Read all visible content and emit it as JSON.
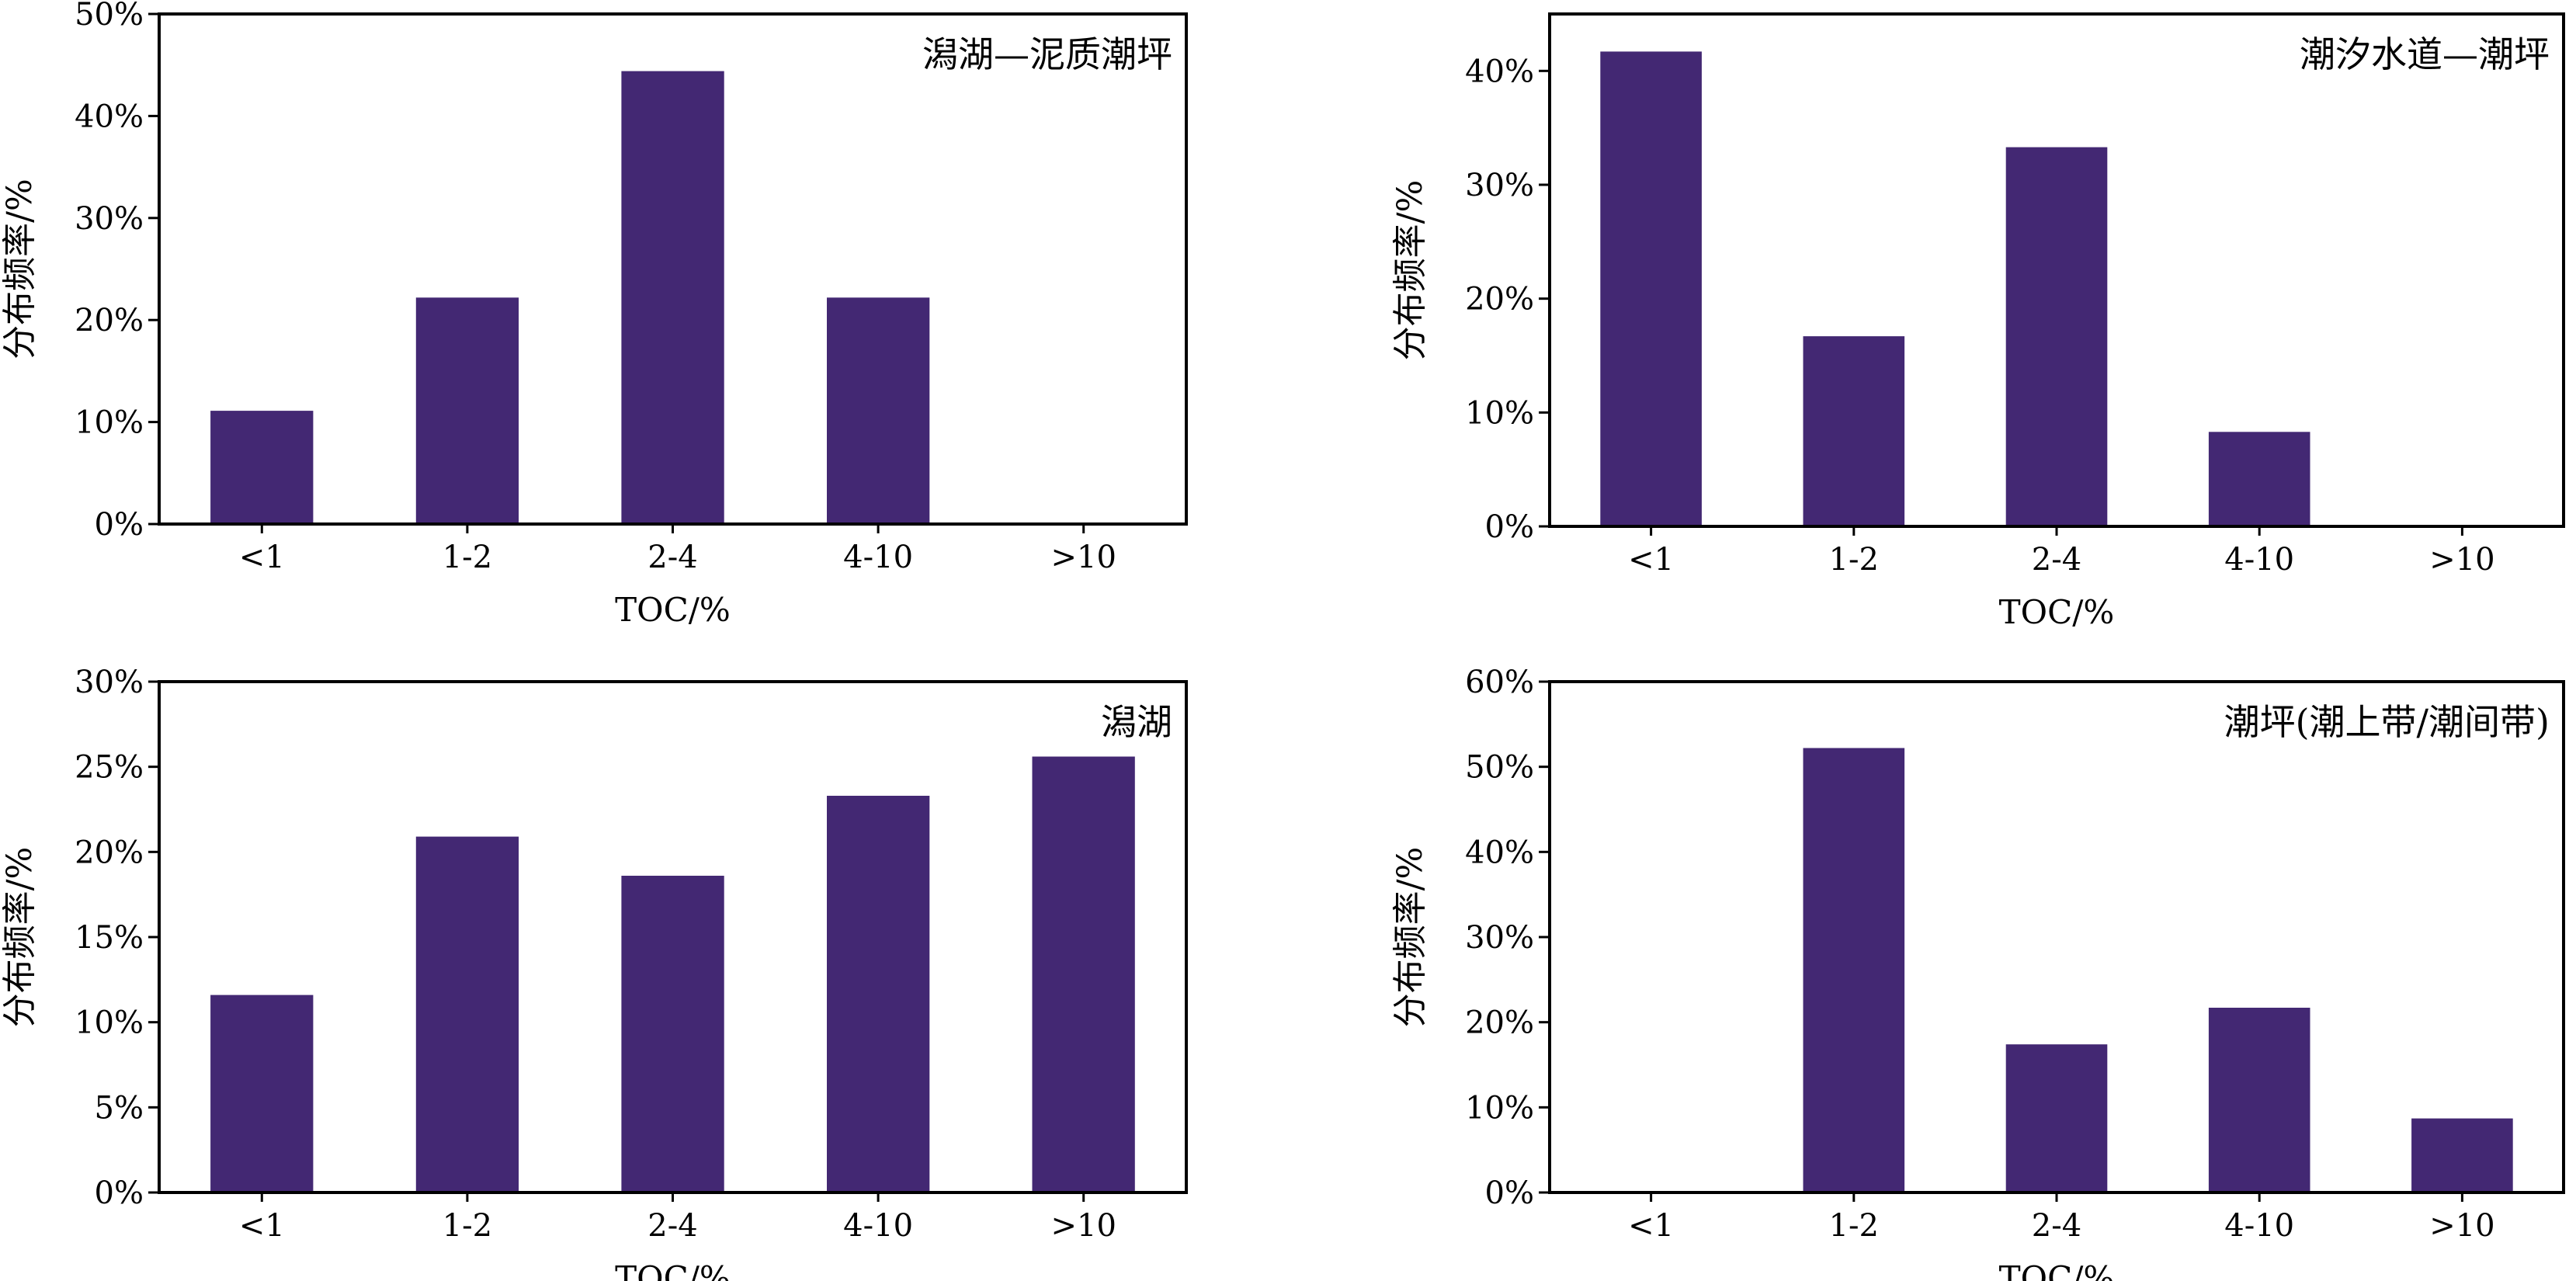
{
  "chart_data": [
    {
      "type": "bar",
      "title": "潟湖—泥质潮坪",
      "xlabel": "TOC/%",
      "ylabel": "分布频率/%",
      "categories": [
        "<1",
        "1-2",
        "2-4",
        "4-10",
        ">10"
      ],
      "values": [
        11.1,
        22.2,
        44.4,
        22.2,
        0
      ],
      "ylim": [
        0,
        50
      ],
      "yticks": [
        0,
        10,
        20,
        30,
        40,
        50
      ],
      "ytick_labels": [
        "0%",
        "10%",
        "20%",
        "30%",
        "40%",
        "50%"
      ],
      "bar_color": "#432873",
      "grid": false
    },
    {
      "type": "bar",
      "title": "潮汐水道—潮坪",
      "xlabel": "TOC/%",
      "ylabel": "分布频率/%",
      "categories": [
        "<1",
        "1-2",
        "2-4",
        "4-10",
        ">10"
      ],
      "values": [
        41.7,
        16.7,
        33.3,
        8.3,
        0
      ],
      "ylim": [
        0,
        45
      ],
      "yticks": [
        0,
        10,
        20,
        30,
        40
      ],
      "ytick_labels": [
        "0%",
        "10%",
        "20%",
        "30%",
        "40%"
      ],
      "bar_color": "#432873",
      "grid": false
    },
    {
      "type": "bar",
      "title": "潟湖",
      "xlabel": "TOC/%",
      "ylabel": "分布频率/%",
      "categories": [
        "<1",
        "1-2",
        "2-4",
        "4-10",
        ">10"
      ],
      "values": [
        11.6,
        20.9,
        18.6,
        23.3,
        25.6
      ],
      "ylim": [
        0,
        30
      ],
      "yticks": [
        0,
        5,
        10,
        15,
        20,
        25,
        30
      ],
      "ytick_labels": [
        "0%",
        "5%",
        "10%",
        "15%",
        "20%",
        "25%",
        "30%"
      ],
      "bar_color": "#432873",
      "grid": false
    },
    {
      "type": "bar",
      "title": "潮坪(潮上带/潮间带)",
      "xlabel": "TOC/%",
      "ylabel": "分布频率/%",
      "categories": [
        "<1",
        "1-2",
        "2-4",
        "4-10",
        ">10"
      ],
      "values": [
        0,
        52.2,
        17.4,
        21.7,
        8.7
      ],
      "ylim": [
        0,
        60
      ],
      "yticks": [
        0,
        10,
        20,
        30,
        40,
        50,
        60
      ],
      "ytick_labels": [
        "0%",
        "10%",
        "20%",
        "30%",
        "40%",
        "50%",
        "60%"
      ],
      "bar_color": "#432873",
      "grid": false
    }
  ]
}
